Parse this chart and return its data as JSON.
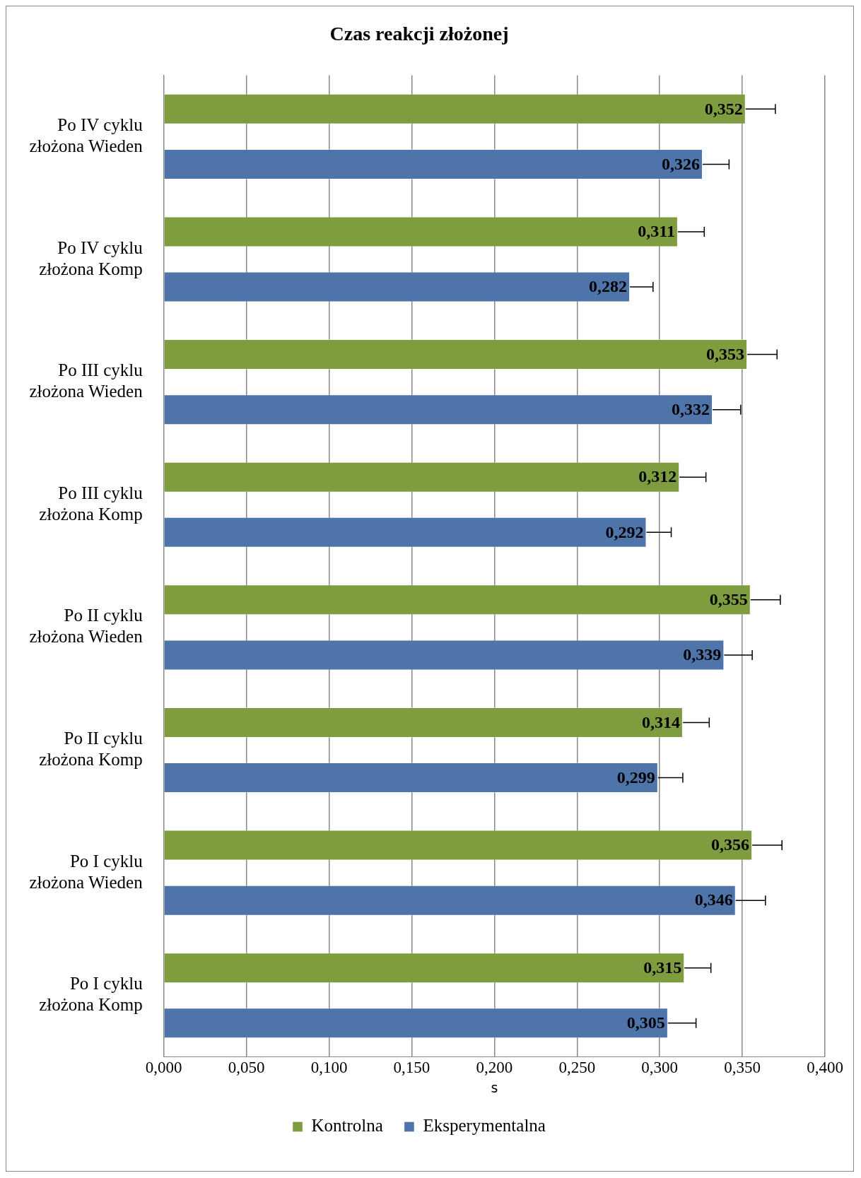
{
  "chart_data": {
    "type": "bar",
    "orientation": "horizontal",
    "title": "Czas reakcji złożonej",
    "xlabel": "s",
    "categories": [
      "Po IV cyklu złożona Wieden",
      "Po IV cyklu złożona Komp",
      "Po III cyklu złożona Wieden",
      "Po III cyklu złożona Komp",
      "Po II cyklu złożona Wieden",
      "Po II cyklu złożona Komp",
      "Po I cyklu złożona Wieden",
      "Po I cyklu złożona Komp"
    ],
    "series": [
      {
        "name": "Kontrolna",
        "color": "#7f9c3f",
        "values": [
          0.352,
          0.311,
          0.353,
          0.312,
          0.355,
          0.314,
          0.356,
          0.315
        ],
        "value_labels": [
          "0,352",
          "0,311",
          "0,353",
          "0,312",
          "0,355",
          "0,314",
          "0,356",
          "0,315"
        ],
        "errors": [
          [
            0.352,
            0.37
          ],
          [
            0.311,
            0.327
          ],
          [
            0.353,
            0.371
          ],
          [
            0.312,
            0.328
          ],
          [
            0.355,
            0.373
          ],
          [
            0.314,
            0.33
          ],
          [
            0.356,
            0.374
          ],
          [
            0.315,
            0.331
          ]
        ]
      },
      {
        "name": "Eksperymentalna",
        "color": "#4f74aa",
        "values": [
          0.326,
          0.282,
          0.332,
          0.292,
          0.339,
          0.299,
          0.346,
          0.305
        ],
        "value_labels": [
          "0,326",
          "0,282",
          "0,332",
          "0,292",
          "0,339",
          "0,299",
          "0,346",
          "0,305"
        ],
        "errors": [
          [
            0.326,
            0.342
          ],
          [
            0.282,
            0.296
          ],
          [
            0.332,
            0.349
          ],
          [
            0.292,
            0.307
          ],
          [
            0.339,
            0.356
          ],
          [
            0.299,
            0.314
          ],
          [
            0.346,
            0.364
          ],
          [
            0.305,
            0.322
          ]
        ]
      }
    ],
    "xlim": [
      0,
      0.4
    ],
    "xticks": [
      {
        "value": 0,
        "label": "0,000"
      },
      {
        "value": 0.05,
        "label": "0,050"
      },
      {
        "value": 0.1,
        "label": "0,100"
      },
      {
        "value": 0.15,
        "label": "0,150"
      },
      {
        "value": 0.2,
        "label": "0,200"
      },
      {
        "value": 0.25,
        "label": "0,250"
      },
      {
        "value": 0.3,
        "label": "0,300"
      },
      {
        "value": 0.35,
        "label": "0,350"
      },
      {
        "value": 0.4,
        "label": "0,400"
      }
    ],
    "grid": "x",
    "legend": "bottom"
  }
}
